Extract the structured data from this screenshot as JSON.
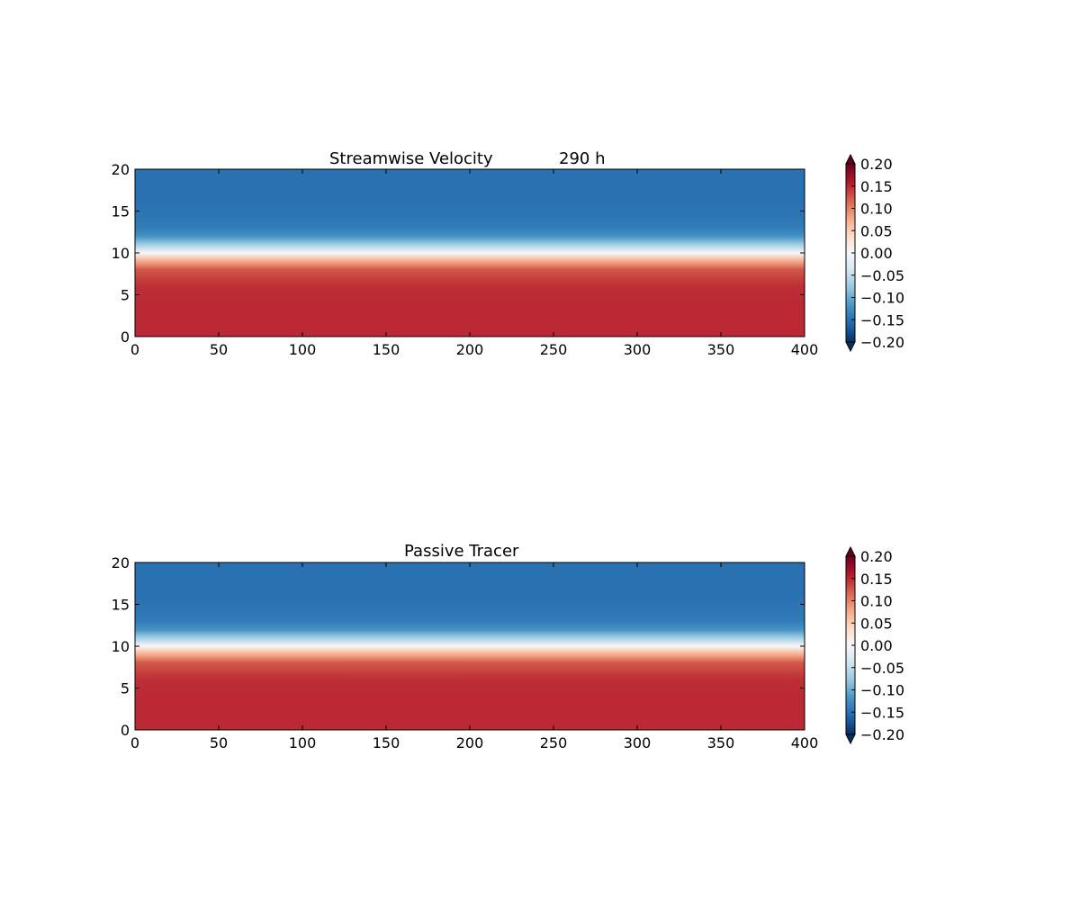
{
  "chart_data": [
    {
      "type": "heatmap",
      "title_parts": [
        "Streamwise Velocity",
        "290 h"
      ],
      "xlabel": "",
      "ylabel": "",
      "xlim": [
        0,
        400
      ],
      "ylim": [
        0,
        20
      ],
      "x_ticks": [
        "0",
        "50",
        "100",
        "150",
        "200",
        "250",
        "300",
        "350",
        "400"
      ],
      "y_ticks": [
        "0",
        "5",
        "10",
        "15",
        "20"
      ],
      "profile_y": [
        0,
        2,
        4,
        6,
        8,
        9,
        10,
        11,
        12,
        13,
        14,
        16,
        18,
        20
      ],
      "profile_value": [
        0.15,
        0.15,
        0.15,
        0.148,
        0.125,
        0.075,
        0.0,
        -0.07,
        -0.12,
        -0.14,
        -0.145,
        -0.15,
        -0.15,
        -0.15
      ],
      "colorbar": {
        "range": [
          -0.2,
          0.2
        ],
        "ticks": [
          "0.20",
          "0.15",
          "0.10",
          "0.05",
          "0.00",
          "−0.05",
          "−0.10",
          "−0.15",
          "−0.20"
        ],
        "extend": "both"
      },
      "colormap": "RdBu_r",
      "grid": false
    },
    {
      "type": "heatmap",
      "title_parts": [
        "Passive Tracer"
      ],
      "xlabel": "",
      "ylabel": "",
      "xlim": [
        0,
        400
      ],
      "ylim": [
        0,
        20
      ],
      "x_ticks": [
        "0",
        "50",
        "100",
        "150",
        "200",
        "250",
        "300",
        "350",
        "400"
      ],
      "y_ticks": [
        "0",
        "5",
        "10",
        "15",
        "20"
      ],
      "profile_y": [
        0,
        2,
        4,
        6,
        8,
        9,
        10,
        11,
        12,
        13,
        14,
        16,
        18,
        20
      ],
      "profile_value": [
        0.15,
        0.15,
        0.15,
        0.148,
        0.125,
        0.075,
        0.0,
        -0.07,
        -0.12,
        -0.14,
        -0.145,
        -0.15,
        -0.15,
        -0.15
      ],
      "colorbar": {
        "range": [
          -0.2,
          0.2
        ],
        "ticks": [
          "0.20",
          "0.15",
          "0.10",
          "0.05",
          "0.00",
          "−0.05",
          "−0.10",
          "−0.15",
          "−0.20"
        ],
        "extend": "both"
      },
      "colormap": "RdBu_r",
      "grid": false
    }
  ]
}
